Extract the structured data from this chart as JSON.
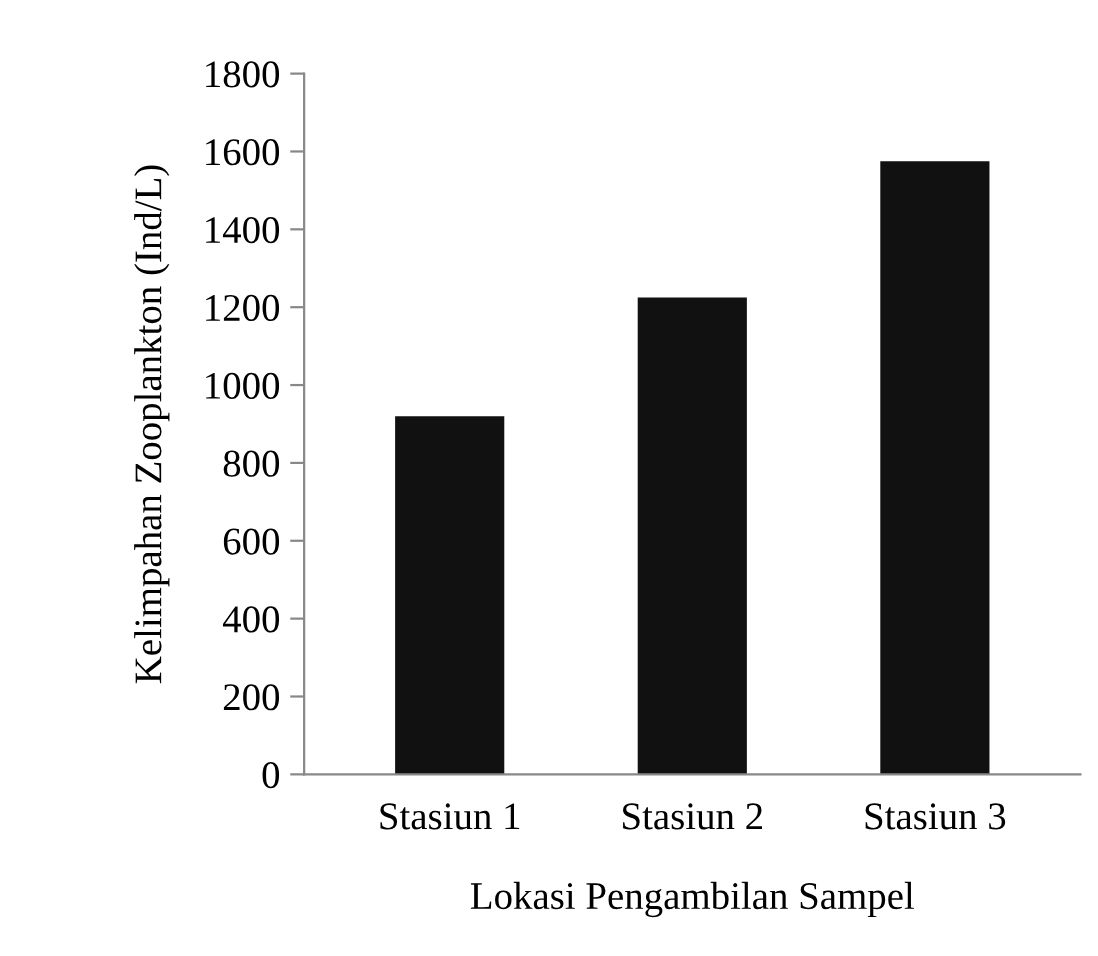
{
  "chart_data": {
    "type": "bar",
    "xlabel": "Lokasi Pengambilan Sampel",
    "ylabel": "Kelimpahan Zooplankton (Ind/L)",
    "categories": [
      "Stasiun 1",
      "Stasiun 2",
      "Stasiun 3"
    ],
    "values": [
      920,
      1225,
      1575
    ],
    "color": "#111111",
    "ylim": [
      0,
      1800
    ],
    "yticks": [
      0,
      200,
      400,
      600,
      800,
      1000,
      1200,
      1400,
      1600,
      1800
    ],
    "grid": false,
    "legend": false
  }
}
